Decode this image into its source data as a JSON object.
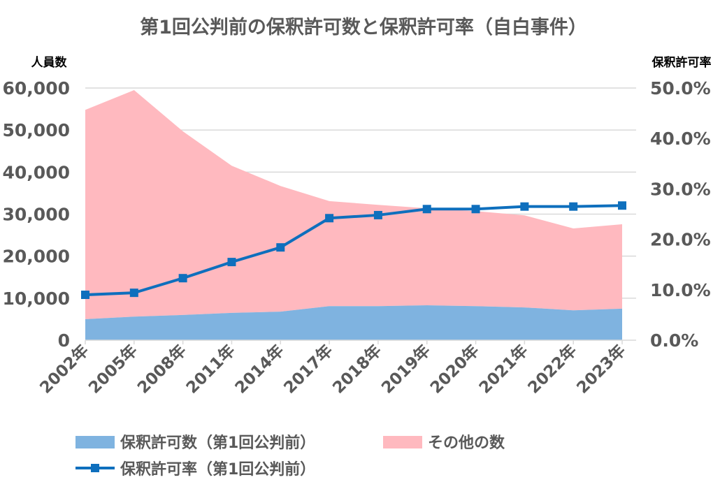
{
  "chart_data": {
    "type": "area+line",
    "title": "第1回公判前の保釈許可数と保釈許可率（自白事件）",
    "ylabel_left": "人員数",
    "ylabel_right": "保釈許可率",
    "ylim_left": [
      0,
      60000
    ],
    "ylim_right": [
      0,
      0.5
    ],
    "yticks_left": [
      "0",
      "10,000",
      "20,000",
      "30,000",
      "40,000",
      "50,000",
      "60,000"
    ],
    "yticks_right": [
      "0.0%",
      "10.0%",
      "20.0%",
      "30.0%",
      "40.0%",
      "50.0%"
    ],
    "grid": true,
    "legend_position": "bottom",
    "categories": [
      "2002年",
      "2005年",
      "2008年",
      "2011年",
      "2014年",
      "2017年",
      "2018年",
      "2019年",
      "2020年",
      "2021年",
      "2022年",
      "2023年"
    ],
    "series": [
      {
        "name": "保釈許可数（第1回公判前）",
        "type": "area",
        "axis": "left",
        "color": "#7fb3e0",
        "values": [
          5000,
          5600,
          6000,
          6500,
          6800,
          8100,
          8100,
          8300,
          8100,
          7800,
          7100,
          7500
        ]
      },
      {
        "name": "その他の数",
        "type": "stacked-area",
        "axis": "left",
        "color": "#ffb9bf",
        "values": [
          49800,
          53900,
          43700,
          35000,
          29900,
          25000,
          24100,
          23100,
          22600,
          21900,
          19500,
          20100
        ]
      },
      {
        "name": "保釈許可率（第1回公判前）",
        "type": "line",
        "axis": "right",
        "color": "#0e6fbd",
        "values": [
          0.09,
          0.094,
          0.123,
          0.155,
          0.184,
          0.242,
          0.248,
          0.26,
          0.26,
          0.265,
          0.265,
          0.267
        ]
      }
    ]
  }
}
